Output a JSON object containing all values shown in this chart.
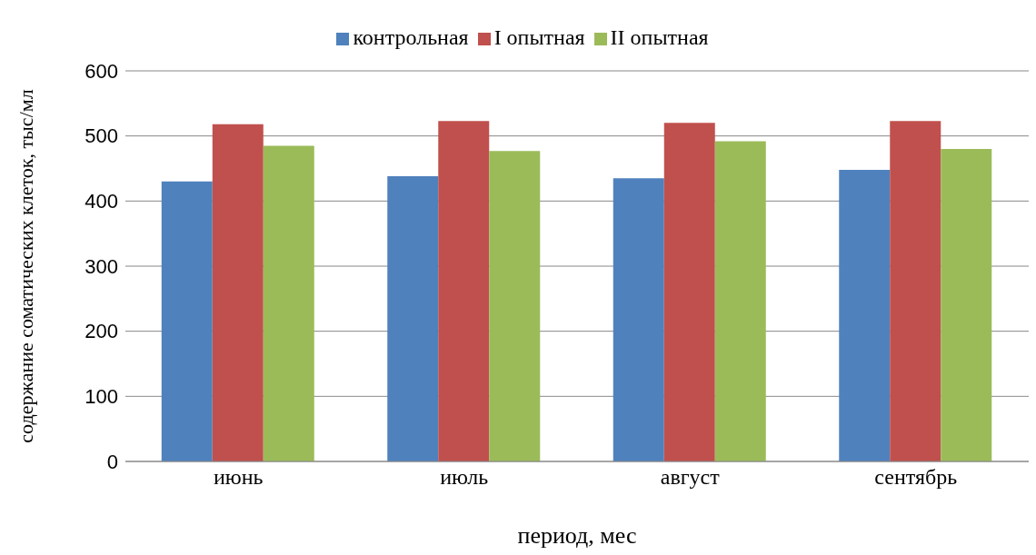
{
  "chart_data": {
    "type": "bar",
    "xlabel": "период, мес",
    "ylabel": "содержание соматических клеток, тыс/мл",
    "categories": [
      "июнь",
      "июль",
      "август",
      "сентябрь"
    ],
    "series": [
      {
        "name": "контрольная",
        "color": "#4f81bd",
        "values": [
          430,
          438,
          435,
          448
        ]
      },
      {
        "name": "I опытная",
        "color": "#c0504d",
        "values": [
          518,
          523,
          520,
          523
        ]
      },
      {
        "name": "II опытная",
        "color": "#9bbb59",
        "values": [
          485,
          477,
          492,
          480
        ]
      }
    ],
    "ylim": [
      0,
      600
    ],
    "yticks": [
      0,
      100,
      200,
      300,
      400,
      500,
      600
    ],
    "grid": "y",
    "legend": "top"
  }
}
